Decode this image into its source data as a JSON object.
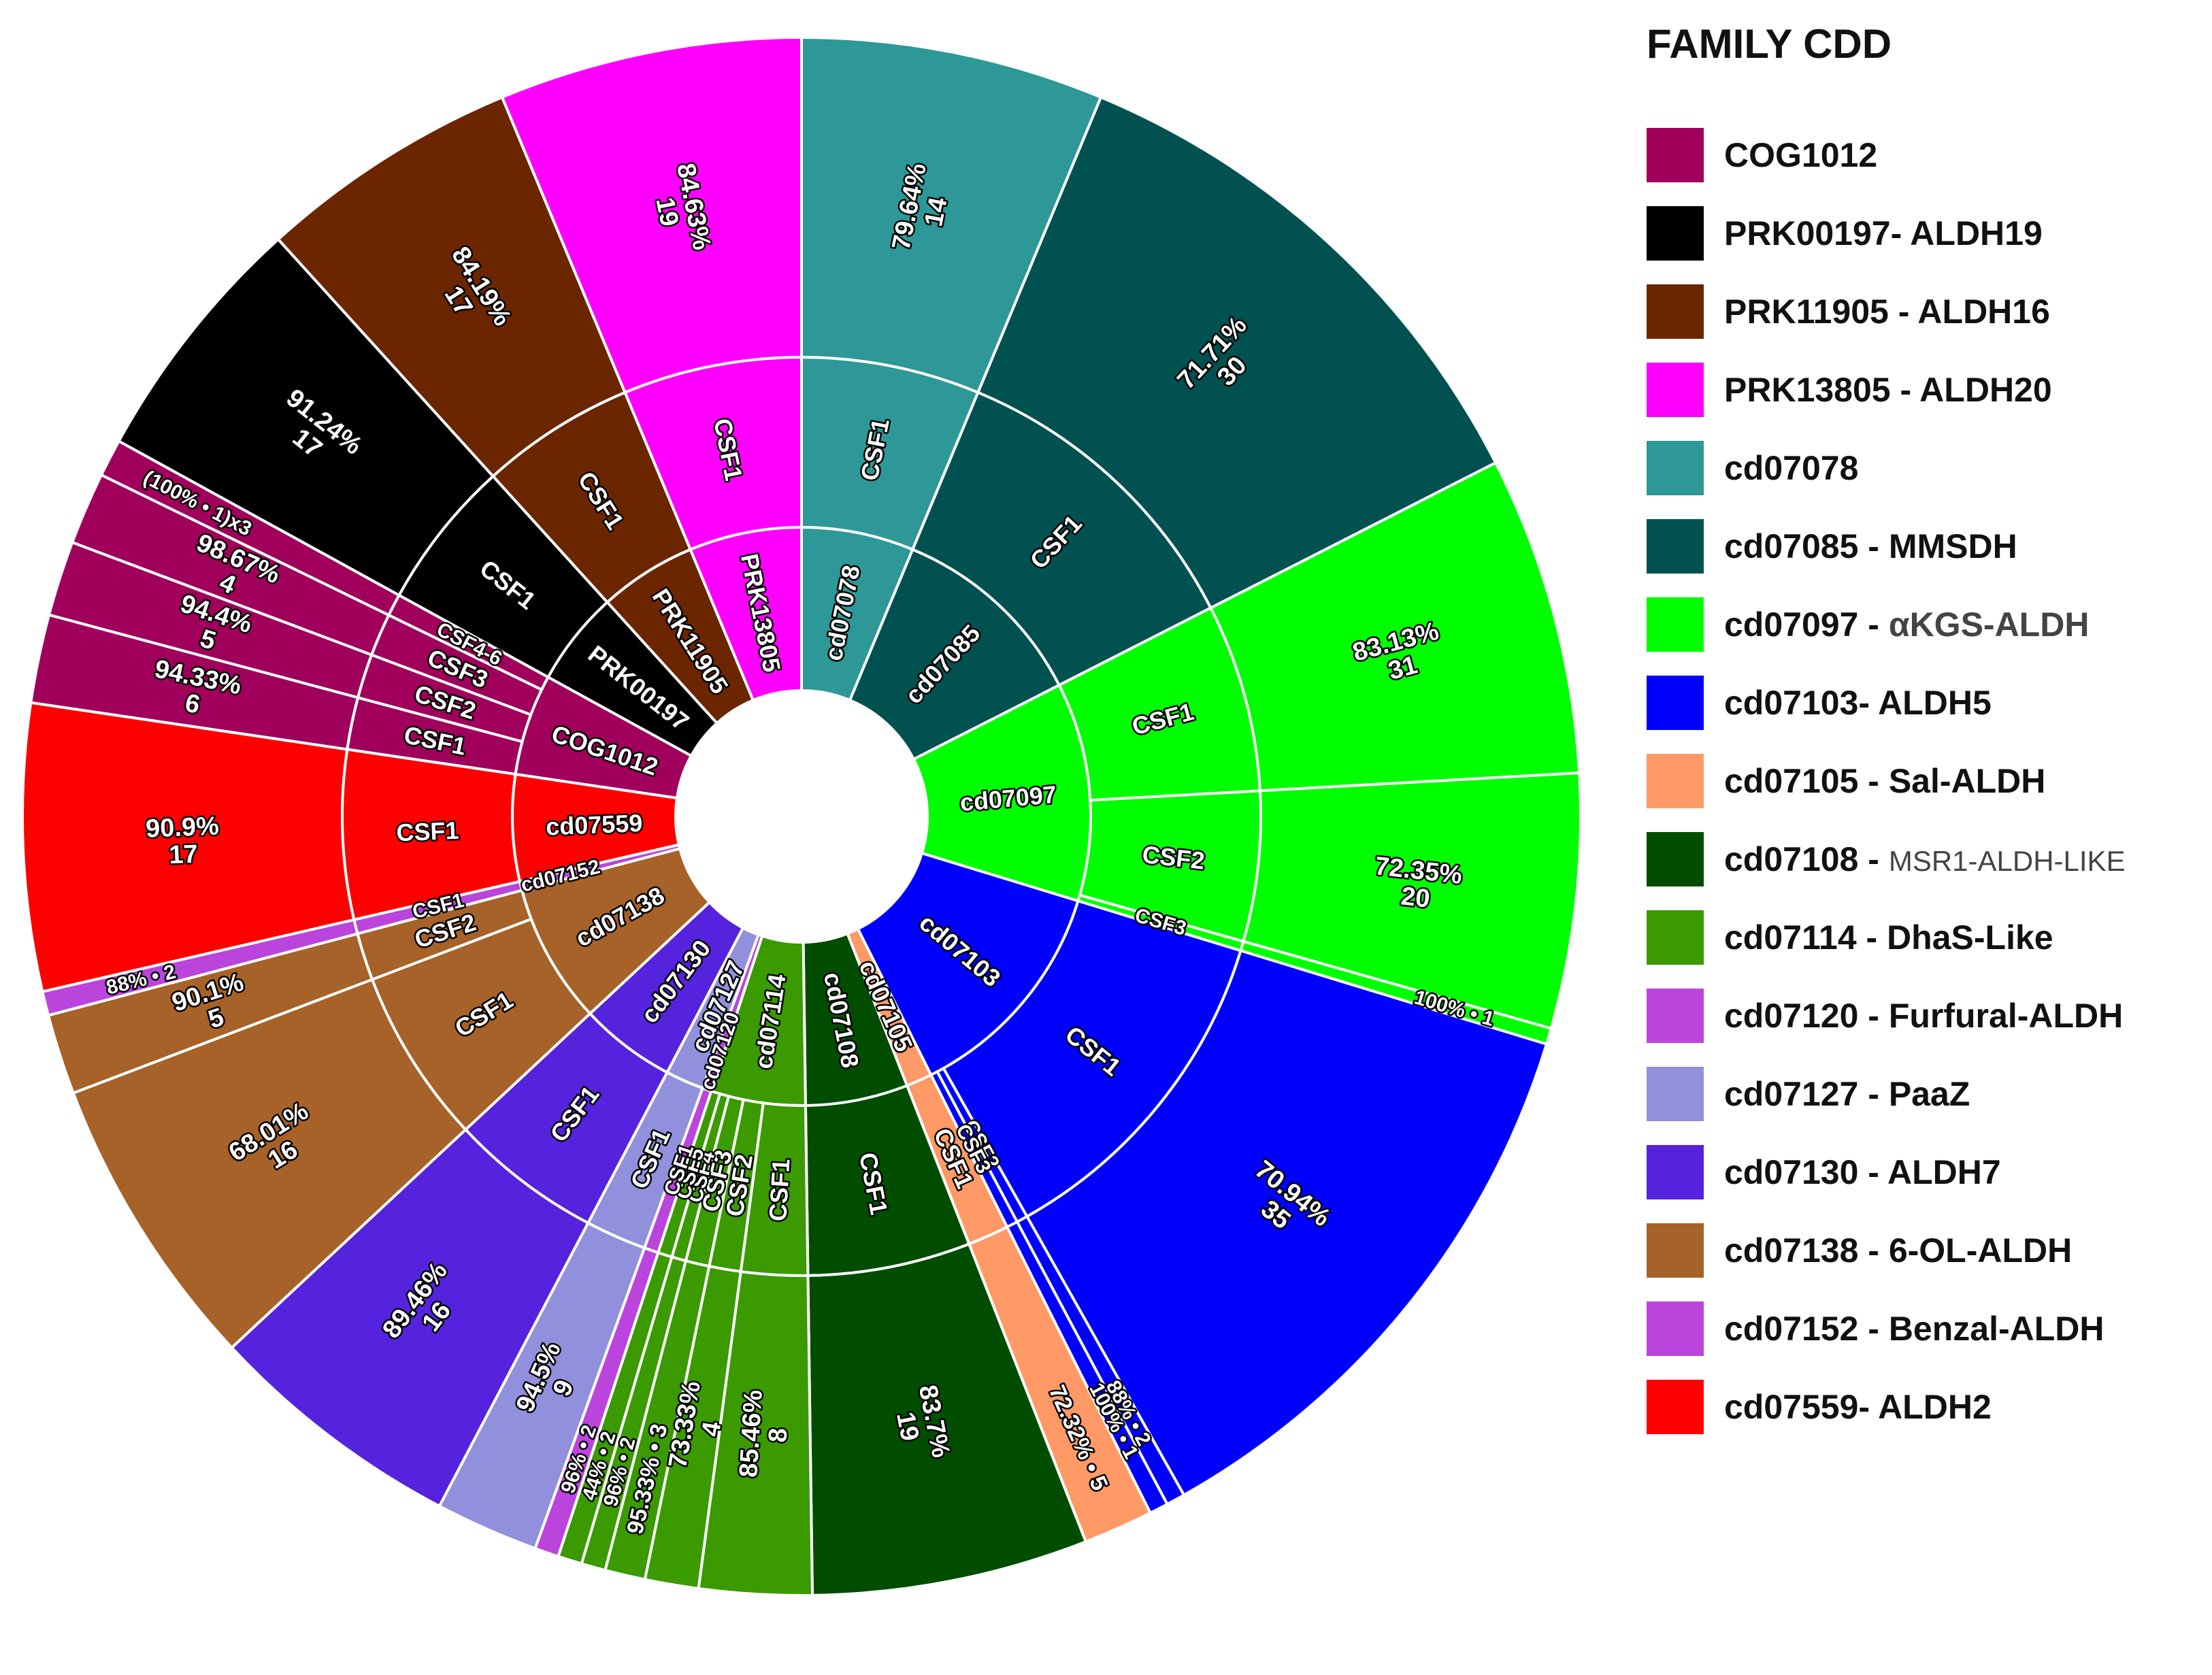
{
  "legend": {
    "title": "FAMILY CDD",
    "items": [
      {
        "id": "COG1012",
        "label": "COG1012",
        "suffix": "",
        "color": "#a0005c"
      },
      {
        "id": "PRK00197",
        "label": "PRK00197- ALDH19",
        "suffix": "",
        "color": "#000000"
      },
      {
        "id": "PRK11905",
        "label": "PRK11905 - ALDH16",
        "suffix": "",
        "color": "#6b2600"
      },
      {
        "id": "PRK13805",
        "label": "PRK13805 - ALDH20",
        "suffix": "",
        "color": "#ff00ff"
      },
      {
        "id": "cd07078",
        "label": "cd07078",
        "suffix": "",
        "color": "#2e9797"
      },
      {
        "id": "cd07085",
        "label": "cd07085 - MMSDH",
        "suffix": "",
        "color": "#025151"
      },
      {
        "id": "cd07097",
        "label": "cd07097 - ",
        "suffix": "αKGS-ALDH",
        "color": "#00ff00"
      },
      {
        "id": "cd07103",
        "label": "cd07103- ALDH5",
        "suffix": "",
        "color": "#0000ff"
      },
      {
        "id": "cd07105",
        "label": "cd07105 - Sal-ALDH",
        "suffix": "",
        "color": "#ff9966"
      },
      {
        "id": "cd07108",
        "label": "cd07108 - ",
        "suffix": "MSR1-ALDH-LIKE",
        "color": "#004d00"
      },
      {
        "id": "cd07114",
        "label": "cd07114 - DhaS-Like",
        "suffix": "",
        "color": "#3a9a00"
      },
      {
        "id": "cd07120",
        "label": "cd07120 - Furfural-ALDH",
        "suffix": "",
        "color": "#bb44dd"
      },
      {
        "id": "cd07127",
        "label": "cd07127 - PaaZ",
        "suffix": "",
        "color": "#9090dd"
      },
      {
        "id": "cd07130",
        "label": "cd07130 - ALDH7",
        "suffix": "",
        "color": "#5522dd"
      },
      {
        "id": "cd07138",
        "label": "cd07138 - 6-OL-ALDH",
        "suffix": "",
        "color": "#a66228"
      },
      {
        "id": "cd07152",
        "label": "cd07152 - Benzal-ALDH",
        "suffix": "",
        "color": "#bb44dd"
      },
      {
        "id": "cd07559",
        "label": "cd07559- ALDH2",
        "suffix": "",
        "color": "#ff0000"
      }
    ]
  },
  "chart_data": {
    "type": "sunburst",
    "rings": [
      "CDD family",
      "CSF",
      "identity % / count"
    ],
    "segments": [
      {
        "family": "cd07078",
        "color": "#2e9797",
        "start": 0,
        "end": 22.6,
        "csf": [
          {
            "label": "CSF1",
            "start": 0,
            "end": 22.6,
            "outer": [
              "79.64%",
              "14"
            ]
          }
        ]
      },
      {
        "family": "cd07085",
        "color": "#025151",
        "start": 22.6,
        "end": 63,
        "csf": [
          {
            "label": "CSF1",
            "start": 22.6,
            "end": 63,
            "outer": [
              "71.71%",
              "30"
            ]
          }
        ]
      },
      {
        "family": "cd07097",
        "color": "#00ff00",
        "start": 63,
        "end": 107,
        "csf": [
          {
            "label": "CSF1",
            "start": 63,
            "end": 86.8,
            "outer": [
              "83.13%",
              "31"
            ]
          },
          {
            "label": "CSF2",
            "start": 86.8,
            "end": 105.8,
            "outer": [
              "72.35%",
              "20"
            ]
          },
          {
            "label": "CSF3",
            "start": 105.8,
            "end": 107,
            "outer": [
              "100% • 1"
            ]
          }
        ]
      },
      {
        "family": "cd07103",
        "color": "#0000ff",
        "start": 107,
        "end": 153.4,
        "csf": [
          {
            "label": "CSF1",
            "start": 107,
            "end": 150.6,
            "outer": [
              "70.94%",
              "35"
            ]
          },
          {
            "label": "CSF2",
            "start": 150.6,
            "end": 152,
            "outer": [
              "88% • 2"
            ]
          },
          {
            "label": "CSF3",
            "start": 152,
            "end": 153.4,
            "outer": [
              "100% • 1"
            ]
          }
        ]
      },
      {
        "family": "cd07105",
        "color": "#ff9966",
        "start": 153.4,
        "end": 158.6,
        "csf": [
          {
            "label": "CSF1",
            "start": 153.4,
            "end": 158.6,
            "outer": [
              "72.32% • 5"
            ]
          }
        ]
      },
      {
        "family": "cd07108",
        "color": "#004d00",
        "start": 158.6,
        "end": 179.2,
        "csf": [
          {
            "label": "CSF1",
            "start": 158.6,
            "end": 179.2,
            "outer": [
              "83.7%",
              "19"
            ]
          }
        ]
      },
      {
        "family": "cd07114",
        "color": "#3a9a00",
        "start": 179.2,
        "end": 198.2,
        "csf": [
          {
            "label": "CSF1",
            "start": 179.2,
            "end": 187.6,
            "outer": [
              "85.46%",
              "8"
            ]
          },
          {
            "label": "CSF2",
            "start": 187.6,
            "end": 191.6,
            "outer": [
              "73.33%",
              "4"
            ]
          },
          {
            "label": "CSF3",
            "start": 191.6,
            "end": 194.6,
            "outer": [
              "95.33% • 3"
            ]
          },
          {
            "label": "CSF4",
            "start": 194.6,
            "end": 196.4,
            "outer": [
              "96% • 2"
            ]
          },
          {
            "label": "CSF5",
            "start": 196.4,
            "end": 198.2,
            "outer": [
              "44% • 2"
            ]
          }
        ]
      },
      {
        "family": "cd07120",
        "color": "#bb44dd",
        "start": 198.2,
        "end": 200,
        "csf": [
          {
            "label": "CSF1",
            "start": 198.2,
            "end": 200,
            "outer": [
              "96% • 2"
            ]
          }
        ]
      },
      {
        "family": "cd07127",
        "color": "#9090dd",
        "start": 200,
        "end": 207.7,
        "csf": [
          {
            "label": "CSF1",
            "start": 200,
            "end": 207.7,
            "outer": [
              "94.5%",
              "9"
            ]
          }
        ]
      },
      {
        "family": "cd07130",
        "color": "#5522dd",
        "start": 207.7,
        "end": 227,
        "csf": [
          {
            "label": "CSF1",
            "start": 207.7,
            "end": 227,
            "outer": [
              "89.46%",
              "16"
            ]
          }
        ]
      },
      {
        "family": "cd07138",
        "color": "#a66228",
        "start": 227,
        "end": 255.2,
        "csf": [
          {
            "label": "CSF1",
            "start": 227,
            "end": 249.2,
            "outer": [
              "68.01%",
              "16"
            ]
          },
          {
            "label": "CSF2",
            "start": 249.2,
            "end": 255.2,
            "outer": [
              "90.1%",
              "5"
            ]
          }
        ]
      },
      {
        "family": "cd07152",
        "color": "#bb44dd",
        "start": 255.2,
        "end": 257,
        "csf": [
          {
            "label": "CSF1",
            "start": 255.2,
            "end": 257,
            "outer": [
              "88% • 2"
            ]
          }
        ]
      },
      {
        "family": "cd07559",
        "color": "#ff0000",
        "start": 257,
        "end": 278.4,
        "csf": [
          {
            "label": "CSF1",
            "start": 257,
            "end": 278.4,
            "outer": [
              "90.9%",
              "17"
            ]
          }
        ]
      },
      {
        "family": "COG1012",
        "color": "#a0005c",
        "start": 278.4,
        "end": 298.8,
        "csf": [
          {
            "label": "CSF1",
            "start": 278.4,
            "end": 285,
            "outer": [
              "94.33%",
              "6"
            ]
          },
          {
            "label": "CSF2",
            "start": 285,
            "end": 290.6,
            "outer": [
              "94.4%",
              "5"
            ]
          },
          {
            "label": "CSF3",
            "start": 290.6,
            "end": 296,
            "outer": [
              "98.67%",
              "4"
            ]
          },
          {
            "label": "CSF4-6",
            "start": 296,
            "end": 298.8,
            "outer": [
              "(100% • 1)x3"
            ]
          }
        ]
      },
      {
        "family": "PRK00197",
        "color": "#000000",
        "start": 298.8,
        "end": 317.8,
        "csf": [
          {
            "label": "CSF1",
            "start": 298.8,
            "end": 317.8,
            "outer": [
              "91.24%",
              "17"
            ]
          }
        ]
      },
      {
        "family": "PRK11905",
        "color": "#6b2600",
        "start": 317.8,
        "end": 337.4,
        "csf": [
          {
            "label": "CSF1",
            "start": 317.8,
            "end": 337.4,
            "outer": [
              "84.19%",
              "17"
            ]
          }
        ]
      },
      {
        "family": "PRK13805",
        "color": "#ff00ff",
        "start": 337.4,
        "end": 360,
        "csf": [
          {
            "label": "CSF1",
            "start": 337.4,
            "end": 360,
            "outer": [
              "84.63%",
              "19"
            ]
          }
        ]
      }
    ]
  }
}
